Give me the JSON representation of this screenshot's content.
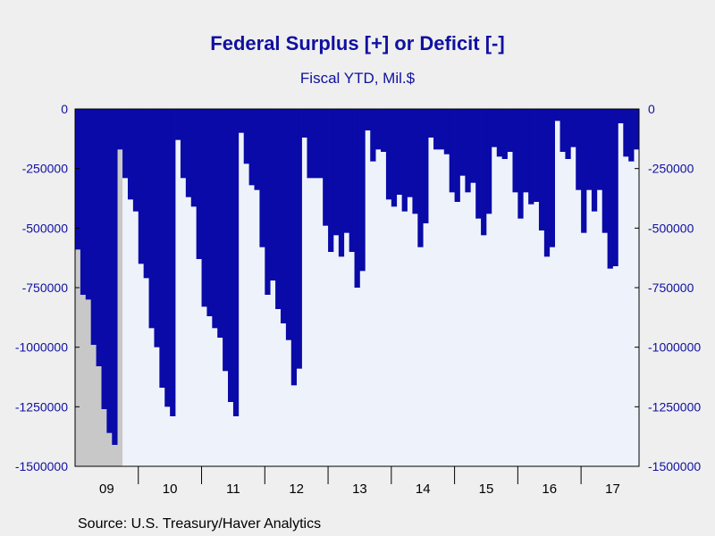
{
  "title": "Federal Surplus [+] or Deficit [-]",
  "subtitle": "Fiscal YTD, Mil.$",
  "source": "Source:  U.S. Treasury/Haver Analytics",
  "colors": {
    "bar": "#0a0aa8",
    "plot_background": "#eef3fb",
    "recession": "#c8c8c8",
    "page_background": "#efefef",
    "text": "#1010a0"
  },
  "chart_data": {
    "type": "bar",
    "title": "Federal Surplus [+] or Deficit [-]",
    "subtitle": "Fiscal YTD, Mil.$",
    "xlabel": "",
    "ylabel": "",
    "ylim": [
      -1500000,
      0
    ],
    "yticks": [
      0,
      -250000,
      -500000,
      -750000,
      -1000000,
      -1250000,
      -1500000
    ],
    "ytick_labels": [
      "0",
      "-250000",
      "-500000",
      "-750000",
      "-1000000",
      "-1250000",
      "-1500000"
    ],
    "x_labels": [
      "09",
      "10",
      "11",
      "12",
      "13",
      "14",
      "15",
      "16",
      "17"
    ],
    "x_start": "2008-10",
    "x_end": "2017-08",
    "recession": {
      "start": "2008-10",
      "end": "2009-06"
    },
    "grid": false,
    "legend": "none",
    "series": [
      {
        "values": [
          -590000,
          -780000,
          -800000,
          -990000,
          -1080000,
          -1260000,
          -1360000,
          -1410000,
          -170000,
          -290000,
          -380000,
          -430000,
          -650000,
          -710000,
          -920000,
          -1000000,
          -1170000,
          -1250000,
          -1290000,
          -130000,
          -290000,
          -370000,
          -410000,
          -630000,
          -830000,
          -870000,
          -920000,
          -960000,
          -1100000,
          -1230000,
          -1290000,
          -100000,
          -230000,
          -320000,
          -340000,
          -580000,
          -780000,
          -720000,
          -840000,
          -900000,
          -970000,
          -1160000,
          -1090000,
          -120000,
          -290000,
          -290000,
          -290000,
          -490000,
          -600000,
          -530000,
          -620000,
          -520000,
          -600000,
          -750000,
          -680000,
          -90000,
          -220000,
          -170000,
          -180000,
          -380000,
          -410000,
          -360000,
          -430000,
          -370000,
          -440000,
          -580000,
          -480000,
          -120000,
          -170000,
          -170000,
          -190000,
          -350000,
          -390000,
          -280000,
          -350000,
          -310000,
          -460000,
          -530000,
          -440000,
          -160000,
          -200000,
          -210000,
          -180000,
          -350000,
          -460000,
          -350000,
          -400000,
          -390000,
          -510000,
          -620000,
          -580000,
          -50000,
          -180000,
          -210000,
          -160000,
          -340000,
          -520000,
          -340000,
          -430000,
          -340000,
          -520000,
          -670000,
          -660000,
          -60000,
          -200000,
          -220000,
          -170000
        ]
      }
    ]
  }
}
